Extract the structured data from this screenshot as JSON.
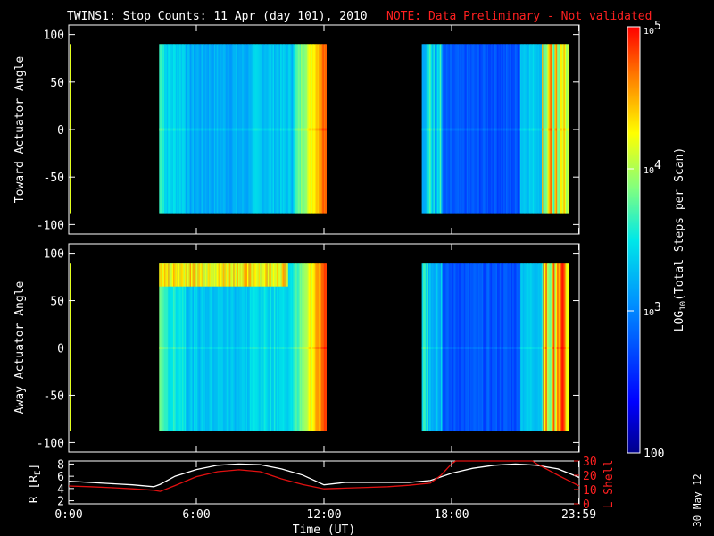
{
  "header": {
    "title": "TWINS1: Stop Counts: 11 Apr (day 101), 2010",
    "note": "NOTE: Data Preliminary - Not validated"
  },
  "footer": {
    "date_stamp": "30 May 12"
  },
  "colors": {
    "background": "#000000",
    "axes": "#ffffff",
    "note": "#ff2020",
    "l_shell_line": "#e01010",
    "r_line": "#ffffff"
  },
  "chart_data": [
    {
      "type": "heatmap",
      "ylabel": "Toward Actuator Angle",
      "xlim": [
        0,
        24
      ],
      "ylim": [
        -110,
        110
      ],
      "yticks": [
        "100",
        "50",
        "0",
        "-50",
        "-100"
      ],
      "data_windows_ut_hours": [
        [
          4.25,
          12.1
        ],
        [
          16.6,
          23.5
        ]
      ],
      "angle_range": [
        -88,
        90
      ],
      "color_scale": "log",
      "clim": [
        100,
        100000
      ]
    },
    {
      "type": "heatmap",
      "ylabel": "Away Actuator Angle",
      "xlim": [
        0,
        24
      ],
      "ylim": [
        -110,
        110
      ],
      "yticks": [
        "100",
        "50",
        "0",
        "-50",
        "-100"
      ],
      "data_windows_ut_hours": [
        [
          4.25,
          12.1
        ],
        [
          16.6,
          23.5
        ]
      ],
      "angle_range": [
        -88,
        90
      ],
      "color_scale": "log",
      "clim": [
        100,
        100000
      ]
    },
    {
      "type": "line",
      "xlabel": "Time (UT)",
      "xticks": [
        "0:00",
        "6:00",
        "12:00",
        "18:00",
        "23:59"
      ],
      "xtick_hours": [
        0,
        6,
        12,
        18,
        23.98
      ],
      "xlim": [
        0,
        24
      ],
      "left_axis": {
        "label": "R [R",
        "label_sub": "E",
        "label_end": "]",
        "ylim": [
          1.5,
          8.5
        ],
        "yticks": [
          "8",
          "6",
          "4",
          "2"
        ]
      },
      "right_axis": {
        "label": "L Shell",
        "ylim": [
          0,
          30
        ],
        "yticks": [
          "30",
          "20",
          "10",
          "0"
        ]
      },
      "series": [
        {
          "axis": "left",
          "x": [
            0,
            1,
            2,
            3,
            4,
            4.3,
            5,
            6,
            7,
            8,
            9,
            10,
            11,
            12,
            13,
            14,
            15,
            16,
            17,
            18,
            19,
            20,
            21,
            22,
            23,
            24
          ],
          "y": [
            5.2,
            5.0,
            4.8,
            4.6,
            4.3,
            4.7,
            6.0,
            7.1,
            7.8,
            8.0,
            7.9,
            7.2,
            6.2,
            4.6,
            5.0,
            5.0,
            5.0,
            5.0,
            5.3,
            6.5,
            7.3,
            7.8,
            8.0,
            7.8,
            7.2,
            5.8
          ]
        },
        {
          "axis": "right",
          "x": [
            0,
            1,
            2,
            3,
            4,
            4.3,
            5,
            6,
            7,
            8,
            9,
            10,
            11,
            12,
            13,
            14,
            15,
            16,
            17,
            17.5,
            18,
            18.2,
            21.8,
            22,
            22.5,
            23,
            24
          ],
          "y": [
            12.5,
            12.0,
            11.3,
            10.5,
            9.5,
            8.7,
            12.8,
            19.0,
            22.5,
            23.8,
            22.5,
            17.5,
            13.5,
            10.5,
            11.0,
            11.5,
            12.0,
            13.0,
            14.5,
            20.0,
            28.0,
            31.0,
            31.0,
            28.0,
            24.0,
            20.0,
            12.5
          ]
        }
      ]
    }
  ],
  "colorbar": {
    "label": "LOG",
    "label_sub": "10",
    "label_end": "(Total Steps per Scan)",
    "range": [
      100,
      100000
    ],
    "ticks": [
      {
        "text": "10",
        "sup": "5",
        "value": 100000
      },
      {
        "text": "10",
        "sup": "4",
        "value": 10000
      },
      {
        "text": "10",
        "sup": "3",
        "value": 1000
      },
      {
        "text": "100",
        "sup": "",
        "value": 100
      }
    ]
  }
}
